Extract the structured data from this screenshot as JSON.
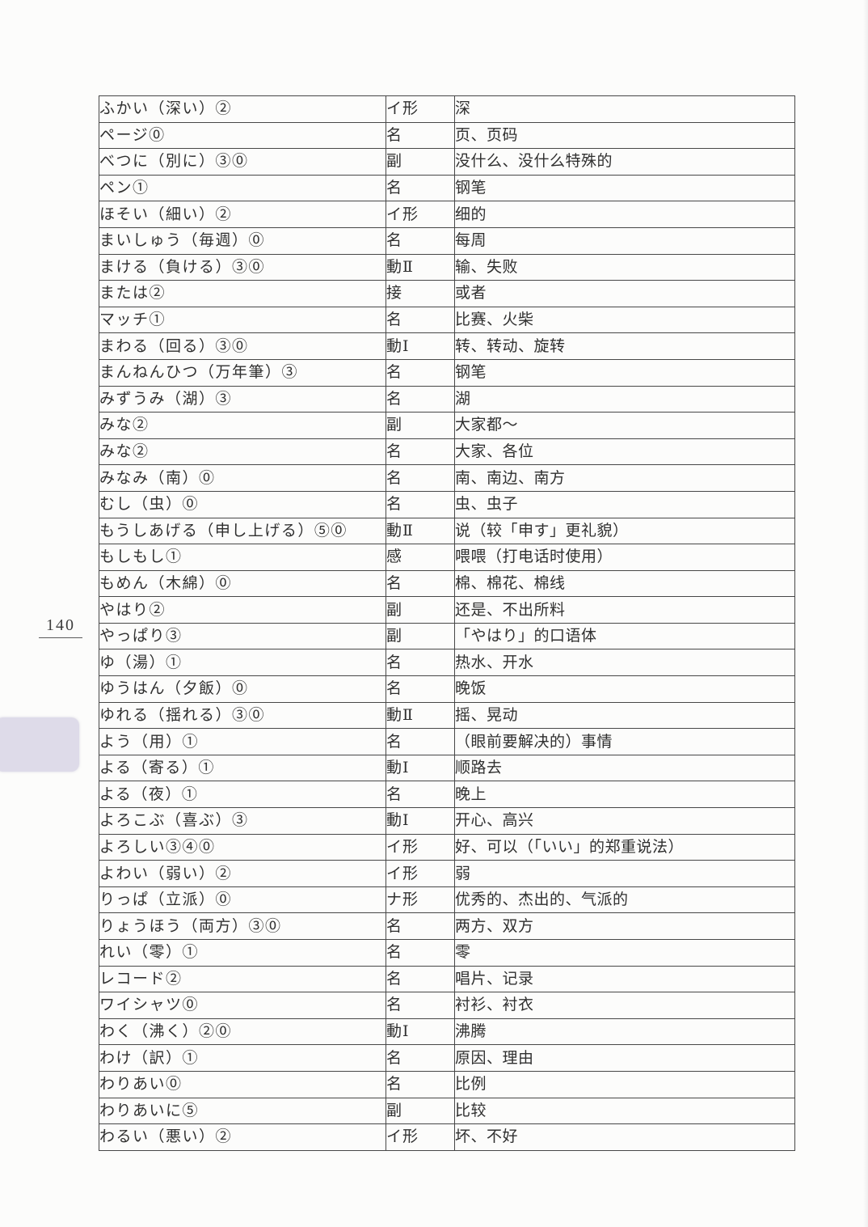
{
  "page": {
    "page_number": "140"
  },
  "colors": {
    "paper": "#fcfcfb",
    "table_border": "#474747",
    "text": "#2f2f2f",
    "tab_marker": "#dedbe9"
  },
  "vocab_table": {
    "columns": [
      "word",
      "pos",
      "meaning"
    ],
    "rows": [
      {
        "word": "ふかい（深い）②",
        "pos": "イ形",
        "meaning": "深"
      },
      {
        "word": "ページ⓪",
        "pos": "名",
        "meaning": "页、页码"
      },
      {
        "word": "べつに（別に）③⓪",
        "pos": "副",
        "meaning": "没什么、没什么特殊的"
      },
      {
        "word": "ペン①",
        "pos": "名",
        "meaning": "钢笔"
      },
      {
        "word": "ほそい（細い）②",
        "pos": "イ形",
        "meaning": "细的"
      },
      {
        "word": "まいしゅう（毎週）⓪",
        "pos": "名",
        "meaning": "每周"
      },
      {
        "word": "まける（負ける）③⓪",
        "pos": "動Ⅱ",
        "meaning": "输、失败"
      },
      {
        "word": "または②",
        "pos": "接",
        "meaning": "或者"
      },
      {
        "word": "マッチ①",
        "pos": "名",
        "meaning": "比赛、火柴"
      },
      {
        "word": "まわる（回る）③⓪",
        "pos": "動Ⅰ",
        "meaning": "转、转动、旋转"
      },
      {
        "word": "まんねんひつ（万年筆）③",
        "pos": "名",
        "meaning": "钢笔"
      },
      {
        "word": "みずうみ（湖）③",
        "pos": "名",
        "meaning": "湖"
      },
      {
        "word": "みな②",
        "pos": "副",
        "meaning": "大家都～"
      },
      {
        "word": "みな②",
        "pos": "名",
        "meaning": "大家、各位"
      },
      {
        "word": "みなみ（南）⓪",
        "pos": "名",
        "meaning": "南、南边、南方"
      },
      {
        "word": "むし（虫）⓪",
        "pos": "名",
        "meaning": "虫、虫子"
      },
      {
        "word": "もうしあげる（申し上げる）⑤⓪",
        "pos": "動Ⅱ",
        "meaning": "说（较「申す」更礼貌）"
      },
      {
        "word": "もしもし①",
        "pos": "感",
        "meaning": "喂喂（打电话时使用）"
      },
      {
        "word": "もめん（木綿）⓪",
        "pos": "名",
        "meaning": "棉、棉花、棉线"
      },
      {
        "word": "やはり②",
        "pos": "副",
        "meaning": "还是、不出所料"
      },
      {
        "word": "やっぱり③",
        "pos": "副",
        "meaning": "「やはり」的口语体"
      },
      {
        "word": "ゆ（湯）①",
        "pos": "名",
        "meaning": "热水、开水"
      },
      {
        "word": "ゆうはん（夕飯）⓪",
        "pos": "名",
        "meaning": "晚饭"
      },
      {
        "word": "ゆれる（揺れる）③⓪",
        "pos": "動Ⅱ",
        "meaning": "摇、晃动"
      },
      {
        "word": "よう（用）①",
        "pos": "名",
        "meaning": "（眼前要解决的）事情"
      },
      {
        "word": "よる（寄る）①",
        "pos": "動Ⅰ",
        "meaning": "顺路去"
      },
      {
        "word": "よる（夜）①",
        "pos": "名",
        "meaning": "晚上"
      },
      {
        "word": "よろこぶ（喜ぶ）③",
        "pos": "動Ⅰ",
        "meaning": "开心、高兴"
      },
      {
        "word": "よろしい③④⓪",
        "pos": "イ形",
        "meaning": "好、可以（「いい」的郑重说法）"
      },
      {
        "word": "よわい（弱い）②",
        "pos": "イ形",
        "meaning": "弱"
      },
      {
        "word": "りっぱ（立派）⓪",
        "pos": "ナ形",
        "meaning": "优秀的、杰出的、气派的"
      },
      {
        "word": "りょうほう（両方）③⓪",
        "pos": "名",
        "meaning": "两方、双方"
      },
      {
        "word": "れい（零）①",
        "pos": "名",
        "meaning": "零"
      },
      {
        "word": "レコード②",
        "pos": "名",
        "meaning": "唱片、记录"
      },
      {
        "word": "ワイシャツ⓪",
        "pos": "名",
        "meaning": "衬衫、衬衣"
      },
      {
        "word": "わく（沸く）②⓪",
        "pos": "動Ⅰ",
        "meaning": "沸腾"
      },
      {
        "word": "わけ（訳）①",
        "pos": "名",
        "meaning": "原因、理由"
      },
      {
        "word": "わりあい⓪",
        "pos": "名",
        "meaning": "比例"
      },
      {
        "word": "わりあいに⑤",
        "pos": "副",
        "meaning": "比较"
      },
      {
        "word": "わるい（悪い）②",
        "pos": "イ形",
        "meaning": "坏、不好"
      }
    ]
  }
}
